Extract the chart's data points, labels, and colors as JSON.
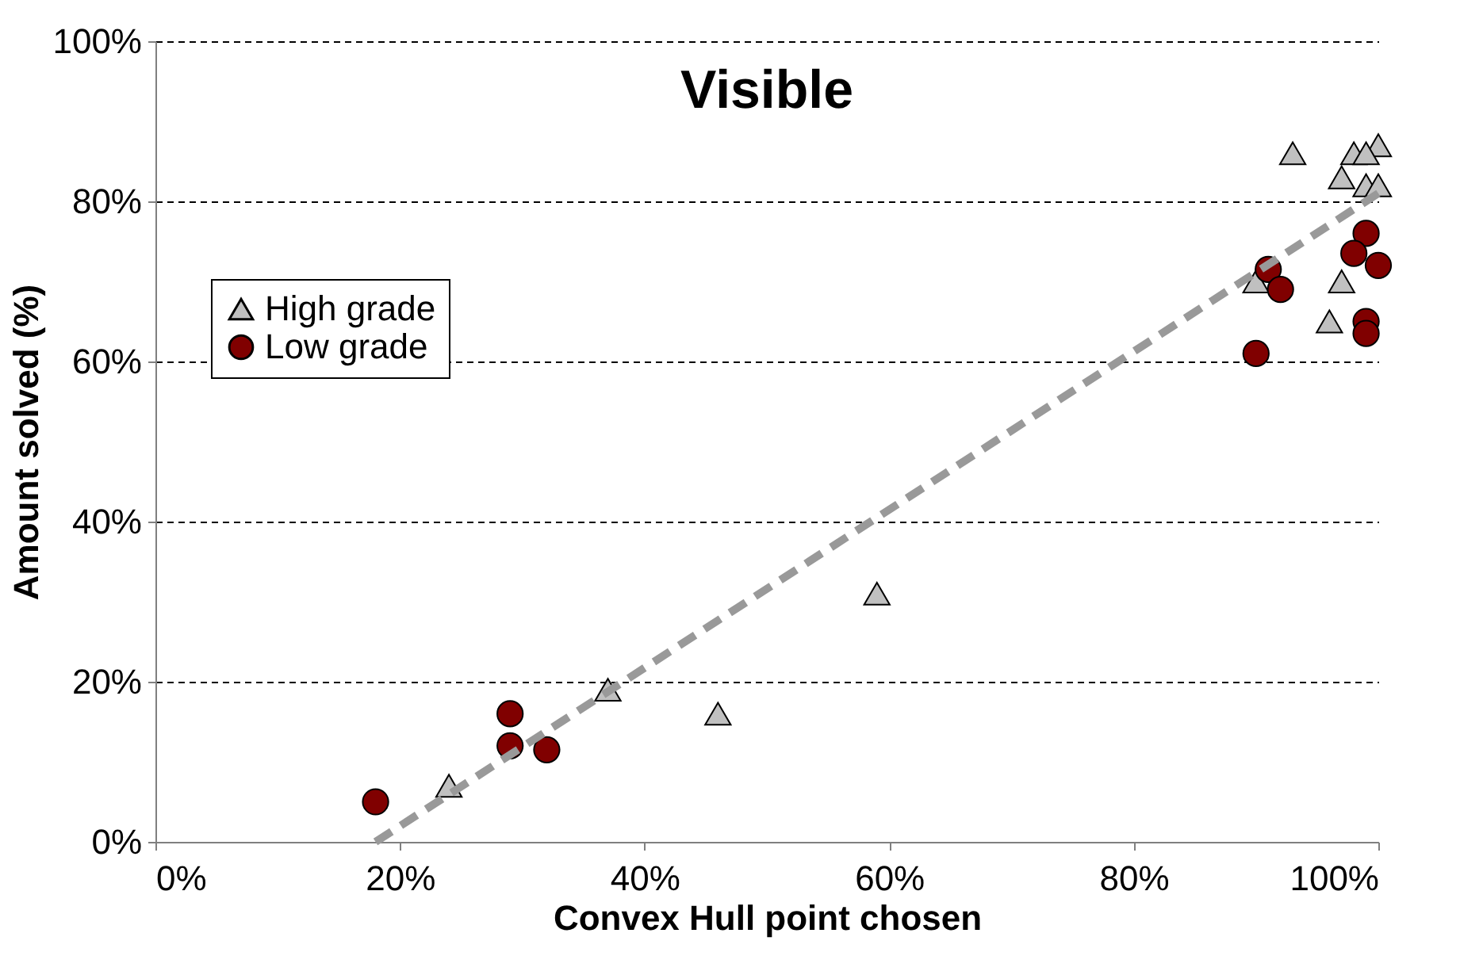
{
  "chart_data": {
    "type": "scatter",
    "title": "Visible",
    "xlabel": "Convex Hull point chosen",
    "ylabel": "Amount solved (%)",
    "xlim": [
      0,
      100
    ],
    "ylim": [
      0,
      100
    ],
    "xticks": [
      {
        "value": 0,
        "label": "0%"
      },
      {
        "value": 20,
        "label": "20%"
      },
      {
        "value": 40,
        "label": "40%"
      },
      {
        "value": 60,
        "label": "60%"
      },
      {
        "value": 80,
        "label": "80%"
      },
      {
        "value": 100,
        "label": "100%"
      }
    ],
    "yticks": [
      {
        "value": 0,
        "label": "0%"
      },
      {
        "value": 20,
        "label": "20%"
      },
      {
        "value": 40,
        "label": "40%"
      },
      {
        "value": 60,
        "label": "60%"
      },
      {
        "value": 80,
        "label": "80%"
      },
      {
        "value": 100,
        "label": "100%"
      }
    ],
    "grid": "y",
    "legend": "left",
    "series": [
      {
        "name": "High grade",
        "color": "#c0c0c0",
        "marker": "triangle",
        "x": [
          24,
          37,
          46,
          59,
          90,
          93,
          98,
          100,
          99,
          97,
          99,
          100,
          97,
          96
        ],
        "values": [
          7,
          19,
          16,
          31,
          70,
          86,
          86,
          87,
          86,
          83,
          82,
          82,
          70,
          65
        ]
      },
      {
        "name": "Low grade",
        "color": "#800000",
        "marker": "circle",
        "x": [
          18,
          29,
          29,
          32,
          91,
          92,
          90,
          99,
          98,
          100,
          99,
          99
        ],
        "values": [
          5,
          16,
          12,
          11.5,
          71.5,
          69,
          61,
          76,
          73.5,
          72,
          65,
          63.5
        ]
      },
      {
        "type": "line",
        "color": "#999999",
        "line_style": "dashed",
        "marker": "none",
        "x": [
          18,
          100
        ],
        "values": [
          0,
          81
        ]
      }
    ]
  }
}
